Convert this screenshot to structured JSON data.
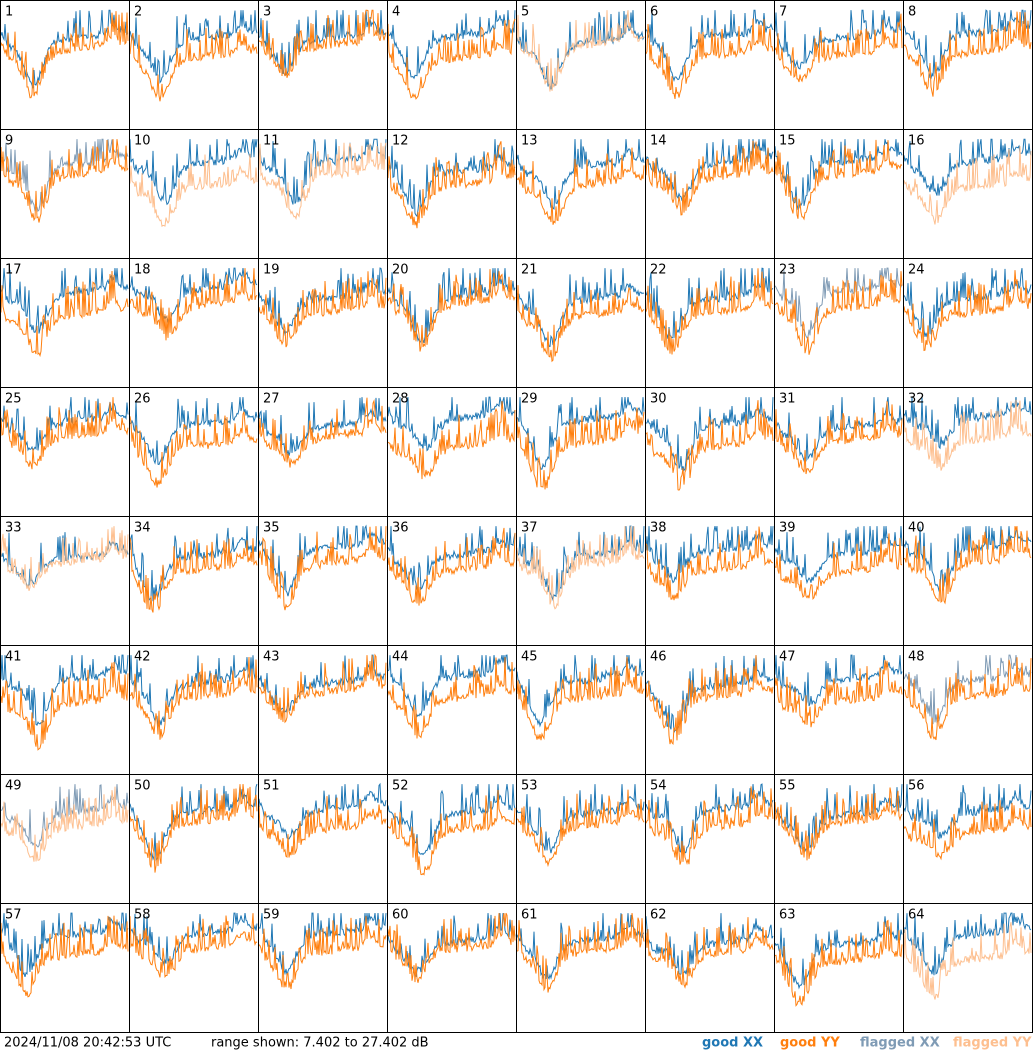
{
  "panels": [
    {
      "label": "1",
      "xx": "good",
      "yy": "good"
    },
    {
      "label": "2",
      "xx": "good",
      "yy": "good"
    },
    {
      "label": "3",
      "xx": "good",
      "yy": "good"
    },
    {
      "label": "4",
      "xx": "good",
      "yy": "good"
    },
    {
      "label": "5",
      "xx": "good",
      "yy": "flagged"
    },
    {
      "label": "6",
      "xx": "good",
      "yy": "good"
    },
    {
      "label": "7",
      "xx": "good",
      "yy": "good"
    },
    {
      "label": "8",
      "xx": "good",
      "yy": "good"
    },
    {
      "label": "9",
      "xx": "flagged",
      "yy": "good"
    },
    {
      "label": "10",
      "xx": "good",
      "yy": "flagged"
    },
    {
      "label": "11",
      "xx": "good",
      "yy": "flagged"
    },
    {
      "label": "12",
      "xx": "good",
      "yy": "good"
    },
    {
      "label": "13",
      "xx": "good",
      "yy": "good"
    },
    {
      "label": "14",
      "xx": "good",
      "yy": "good"
    },
    {
      "label": "15",
      "xx": "good",
      "yy": "good"
    },
    {
      "label": "16",
      "xx": "good",
      "yy": "flagged"
    },
    {
      "label": "17",
      "xx": "good",
      "yy": "good"
    },
    {
      "label": "18",
      "xx": "good",
      "yy": "good"
    },
    {
      "label": "19",
      "xx": "good",
      "yy": "good"
    },
    {
      "label": "20",
      "xx": "good",
      "yy": "good"
    },
    {
      "label": "21",
      "xx": "good",
      "yy": "good"
    },
    {
      "label": "22",
      "xx": "good",
      "yy": "good"
    },
    {
      "label": "23",
      "xx": "flagged",
      "yy": "good"
    },
    {
      "label": "24",
      "xx": "good",
      "yy": "good"
    },
    {
      "label": "25",
      "xx": "good",
      "yy": "good"
    },
    {
      "label": "26",
      "xx": "good",
      "yy": "good"
    },
    {
      "label": "27",
      "xx": "good",
      "yy": "good"
    },
    {
      "label": "28",
      "xx": "good",
      "yy": "good"
    },
    {
      "label": "29",
      "xx": "good",
      "yy": "good"
    },
    {
      "label": "30",
      "xx": "good",
      "yy": "good"
    },
    {
      "label": "31",
      "xx": "good",
      "yy": "good"
    },
    {
      "label": "32",
      "xx": "good",
      "yy": "flagged"
    },
    {
      "label": "33",
      "xx": "good",
      "yy": "flagged"
    },
    {
      "label": "34",
      "xx": "good",
      "yy": "good"
    },
    {
      "label": "35",
      "xx": "good",
      "yy": "good"
    },
    {
      "label": "36",
      "xx": "good",
      "yy": "good"
    },
    {
      "label": "37",
      "xx": "good",
      "yy": "flagged"
    },
    {
      "label": "38",
      "xx": "good",
      "yy": "good"
    },
    {
      "label": "39",
      "xx": "good",
      "yy": "good"
    },
    {
      "label": "40",
      "xx": "good",
      "yy": "good"
    },
    {
      "label": "41",
      "xx": "good",
      "yy": "good"
    },
    {
      "label": "42",
      "xx": "good",
      "yy": "good"
    },
    {
      "label": "43",
      "xx": "good",
      "yy": "good"
    },
    {
      "label": "44",
      "xx": "good",
      "yy": "good"
    },
    {
      "label": "45",
      "xx": "good",
      "yy": "good"
    },
    {
      "label": "46",
      "xx": "good",
      "yy": "good"
    },
    {
      "label": "47",
      "xx": "good",
      "yy": "good"
    },
    {
      "label": "48",
      "xx": "flagged",
      "yy": "good"
    },
    {
      "label": "49",
      "xx": "flagged",
      "yy": "flagged"
    },
    {
      "label": "50",
      "xx": "good",
      "yy": "good"
    },
    {
      "label": "51",
      "xx": "good",
      "yy": "good"
    },
    {
      "label": "52",
      "xx": "good",
      "yy": "good"
    },
    {
      "label": "53",
      "xx": "good",
      "yy": "good"
    },
    {
      "label": "54",
      "xx": "good",
      "yy": "good"
    },
    {
      "label": "55",
      "xx": "good",
      "yy": "good"
    },
    {
      "label": "56",
      "xx": "good",
      "yy": "good"
    },
    {
      "label": "57",
      "xx": "good",
      "yy": "good"
    },
    {
      "label": "58",
      "xx": "good",
      "yy": "good"
    },
    {
      "label": "59",
      "xx": "good",
      "yy": "good"
    },
    {
      "label": "60",
      "xx": "good",
      "yy": "good"
    },
    {
      "label": "61",
      "xx": "good",
      "yy": "good"
    },
    {
      "label": "62",
      "xx": "good",
      "yy": "good"
    },
    {
      "label": "63",
      "xx": "good",
      "yy": "good"
    },
    {
      "label": "64",
      "xx": "good",
      "yy": "flagged"
    }
  ],
  "footer": {
    "timestamp": "2024/11/08 20:42:53 UTC",
    "range": "range shown: 7.402 to 27.402 dB"
  },
  "legend": [
    {
      "key": "good-xx",
      "text": "good XX",
      "color": "#1f77b4"
    },
    {
      "key": "good-yy",
      "text": "good YY",
      "color": "#ff7f0e"
    },
    {
      "key": "flagged-xx",
      "text": "flagged XX",
      "color": "#7f9bb5"
    },
    {
      "key": "flagged-yy",
      "text": "flagged YY",
      "color": "#fdbf8f"
    }
  ]
}
